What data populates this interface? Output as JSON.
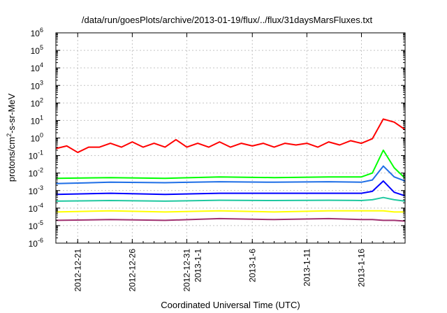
{
  "chart_data": {
    "type": "line",
    "title": "/data/run/goesPlots/archive/2013-01-19/flux/../flux/31daysMarsFluxes.txt",
    "xlabel": "Coordinated Universal Time (UTC)",
    "ylabel_base": "protons/cm",
    "ylabel_sup": "2",
    "ylabel_rest": "-s-sr-MeV",
    "y_scale": "log",
    "y_exp_range": [
      -6,
      6
    ],
    "y_ticks": [
      {
        "base": "10",
        "exp": "-6"
      },
      {
        "base": "10",
        "exp": "-5"
      },
      {
        "base": "10",
        "exp": "-4"
      },
      {
        "base": "10",
        "exp": "-3"
      },
      {
        "base": "10",
        "exp": "-2"
      },
      {
        "base": "10",
        "exp": "-1"
      },
      {
        "base": "10",
        "exp": "0"
      },
      {
        "base": "10",
        "exp": "1"
      },
      {
        "base": "10",
        "exp": "2"
      },
      {
        "base": "10",
        "exp": "3"
      },
      {
        "base": "10",
        "exp": "4"
      },
      {
        "base": "10",
        "exp": "5"
      },
      {
        "base": "10",
        "exp": "6"
      }
    ],
    "x_range": [
      "2012-12-19",
      "2013-01-20"
    ],
    "x_ticks": [
      {
        "date": "2012-12-21",
        "lines": [
          "2012-12-21"
        ]
      },
      {
        "date": "2012-12-26",
        "lines": [
          "2012-12-26"
        ]
      },
      {
        "date": "2012-12-31",
        "lines": [
          "2012-12-31",
          "2013-1-1"
        ]
      },
      {
        "date": "2013-01-06",
        "lines": [
          "2013-1-6"
        ]
      },
      {
        "date": "2013-01-11",
        "lines": [
          "2013-1-11"
        ]
      },
      {
        "date": "2013-01-16",
        "lines": [
          "2013-1-16"
        ]
      }
    ],
    "grid": true,
    "series": [
      {
        "color": "#ff0000",
        "x": [
          "2012-12-19",
          "2012-12-20",
          "2012-12-21",
          "2012-12-22",
          "2012-12-23",
          "2012-12-24",
          "2012-12-25",
          "2012-12-26",
          "2012-12-27",
          "2012-12-28",
          "2012-12-29",
          "2012-12-30",
          "2012-12-31",
          "2013-01-01",
          "2013-01-02",
          "2013-01-03",
          "2013-01-04",
          "2013-01-05",
          "2013-01-06",
          "2013-01-07",
          "2013-01-08",
          "2013-01-09",
          "2013-01-10",
          "2013-01-11",
          "2013-01-12",
          "2013-01-13",
          "2013-01-14",
          "2013-01-15",
          "2013-01-16",
          "2013-01-17",
          "2013-01-18",
          "2013-01-19",
          "2013-01-20"
        ],
        "y": [
          0.25,
          0.35,
          0.15,
          0.3,
          0.3,
          0.5,
          0.3,
          0.6,
          0.3,
          0.5,
          0.3,
          0.8,
          0.3,
          0.5,
          0.3,
          0.6,
          0.3,
          0.5,
          0.35,
          0.5,
          0.3,
          0.5,
          0.4,
          0.5,
          0.3,
          0.6,
          0.4,
          0.7,
          0.5,
          0.9,
          12,
          8,
          3
        ]
      },
      {
        "color": "#00ff00",
        "x": [
          "2012-12-19",
          "2012-12-24",
          "2012-12-29",
          "2013-01-03",
          "2013-01-08",
          "2013-01-13",
          "2013-01-16",
          "2013-01-17",
          "2013-01-18",
          "2013-01-19",
          "2013-01-20"
        ],
        "y": [
          0.005,
          0.0055,
          0.005,
          0.006,
          0.0055,
          0.006,
          0.006,
          0.01,
          0.2,
          0.02,
          0.005
        ]
      },
      {
        "color": "#1e6ee6",
        "x": [
          "2012-12-19",
          "2012-12-24",
          "2012-12-29",
          "2013-01-03",
          "2013-01-08",
          "2013-01-13",
          "2013-01-16",
          "2013-01-17",
          "2013-01-18",
          "2013-01-19",
          "2013-01-20"
        ],
        "y": [
          0.0025,
          0.003,
          0.0028,
          0.0032,
          0.003,
          0.0032,
          0.003,
          0.004,
          0.025,
          0.006,
          0.0035
        ]
      },
      {
        "color": "#0000ff",
        "x": [
          "2012-12-19",
          "2012-12-24",
          "2012-12-29",
          "2013-01-03",
          "2013-01-08",
          "2013-01-13",
          "2013-01-16",
          "2013-01-17",
          "2013-01-18",
          "2013-01-19",
          "2013-01-20"
        ],
        "y": [
          0.0006,
          0.0007,
          0.0006,
          0.0007,
          0.0007,
          0.0007,
          0.0007,
          0.0009,
          0.0035,
          0.0008,
          0.0005
        ]
      },
      {
        "color": "#20c8a0",
        "x": [
          "2012-12-19",
          "2012-12-24",
          "2012-12-29",
          "2013-01-03",
          "2013-01-08",
          "2013-01-13",
          "2013-01-16",
          "2013-01-17",
          "2013-01-18",
          "2013-01-19",
          "2013-01-20"
        ],
        "y": [
          0.00025,
          0.00027,
          0.00025,
          0.00028,
          0.00027,
          0.00028,
          0.00027,
          0.0003,
          0.0004,
          0.0003,
          0.00025
        ]
      },
      {
        "color": "#ffff00",
        "x": [
          "2012-12-19",
          "2012-12-24",
          "2012-12-29",
          "2013-01-03",
          "2013-01-08",
          "2013-01-13",
          "2013-01-16",
          "2013-01-17",
          "2013-01-18",
          "2013-01-19",
          "2013-01-20"
        ],
        "y": [
          6e-05,
          7e-05,
          6e-05,
          7e-05,
          6e-05,
          7e-05,
          7e-05,
          7e-05,
          7e-05,
          6e-05,
          6e-05
        ]
      },
      {
        "color": "#a03070",
        "x": [
          "2012-12-19",
          "2012-12-24",
          "2012-12-29",
          "2013-01-03",
          "2013-01-08",
          "2013-01-13",
          "2013-01-16",
          "2013-01-17",
          "2013-01-18",
          "2013-01-19",
          "2013-01-20"
        ],
        "y": [
          2e-05,
          2.2e-05,
          2e-05,
          2.5e-05,
          2.2e-05,
          2.5e-05,
          2.2e-05,
          2.2e-05,
          2e-05,
          2e-05,
          1.8e-05
        ]
      }
    ]
  }
}
